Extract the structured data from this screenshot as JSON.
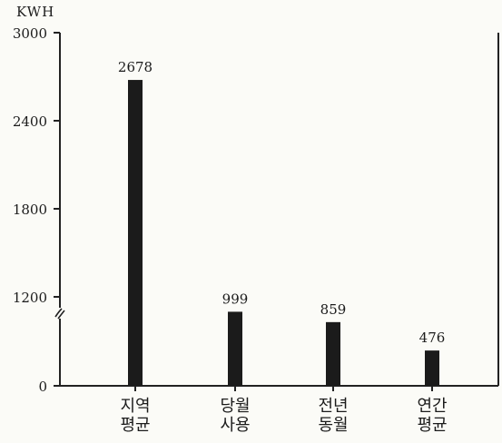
{
  "chart_data": {
    "type": "bar",
    "unit_label": "KWH",
    "categories": [
      [
        "지역",
        "평균"
      ],
      [
        "당월",
        "사용"
      ],
      [
        "전년",
        "동월"
      ],
      [
        "연간",
        "평균"
      ]
    ],
    "values": [
      2678,
      999,
      859,
      476
    ],
    "data_labels": [
      "2678",
      "999",
      "859",
      "476"
    ],
    "y_ticks": [
      {
        "value": 0,
        "label": "0"
      },
      {
        "value": 1200,
        "label": "1200"
      },
      {
        "value": 1800,
        "label": "1800"
      },
      {
        "value": 2400,
        "label": "2400"
      },
      {
        "value": 3000,
        "label": "3000"
      }
    ],
    "ylim": [
      0,
      3000
    ],
    "axis_break": true,
    "grid": false,
    "bar_color": "#1b1b1b"
  }
}
